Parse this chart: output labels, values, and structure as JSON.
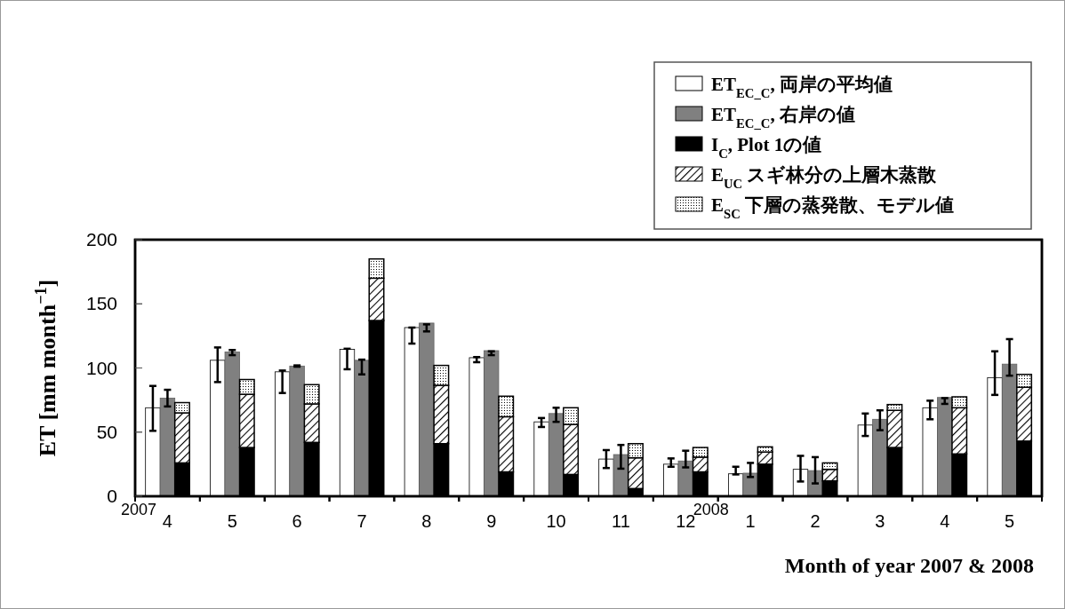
{
  "chart_data": [
    {
      "type": "bar",
      "xlabel": "Month of year 2007 & 2008",
      "ylabel": "ET [mm month$^{−1}$]",
      "categories": [
        "4",
        "5",
        "6",
        "7",
        "8",
        "9",
        "10",
        "11",
        "12",
        "1",
        "2",
        "3",
        "4",
        "5"
      ],
      "ylim": [
        0,
        200
      ],
      "yticks": [
        0,
        50,
        100,
        150,
        200
      ],
      "legend": "top right",
      "annotations": [
        "2007",
        "2008"
      ],
      "series": [
        {
          "name": "ET$_{EC_C}$, 両岸の平均値",
          "color": "#ffffff",
          "values": [
            69,
            106,
            97,
            114.5,
            131.5,
            108,
            58,
            29,
            25,
            17.5,
            21,
            55.5,
            69,
            92.5
          ],
          "errors": [
            [
              51,
              86
            ],
            [
              89,
              116
            ],
            [
              80.5,
              98
            ],
            [
              99,
              115
            ],
            [
              119,
              131.5
            ],
            [
              104.5,
              108.5
            ],
            [
              54,
              61
            ],
            [
              22,
              36
            ],
            [
              23,
              29.5
            ],
            [
              17,
              23
            ],
            [
              11.5,
              31.5
            ],
            [
              47,
              64.5
            ],
            [
              60,
              74.5
            ],
            [
              79,
              113
            ]
          ]
        },
        {
          "name": "ET$_{EC_C}$, 右岸の値",
          "color": "#808080",
          "values": [
            76.5,
            112.5,
            101.5,
            106,
            135,
            113.5,
            64.5,
            32.5,
            27.5,
            18,
            20,
            60,
            77,
            103
          ],
          "errors": [
            [
              70,
              83
            ],
            [
              110,
              114
            ],
            [
              101,
              102
            ],
            [
              95,
              106.5
            ],
            [
              128.5,
              134
            ],
            [
              110,
              113
            ],
            [
              58,
              69
            ],
            [
              21.5,
              40
            ],
            [
              22.5,
              35.5
            ],
            [
              15,
              26
            ],
            [
              10,
              30.5
            ],
            [
              51.5,
              67
            ],
            [
              72,
              76.5
            ],
            [
              94,
              122.5
            ]
          ]
        }
      ]
    },
    {
      "type": "bar",
      "categories": [
        null,
        null,
        null,
        null,
        null,
        null,
        null,
        null,
        null,
        null,
        null,
        null,
        null,
        null
      ],
      "ylim": [
        0,
        200
      ],
      "yticks": [
        0,
        50,
        100,
        150,
        200
      ],
      "tick_labels": false,
      "legend": "top right",
      "stacked": true,
      "series": [
        {
          "name": "I$_{C}$, Plot 1の値",
          "color": "#000000",
          "values": [
            26,
            38,
            42,
            137,
            41,
            19,
            17,
            6,
            19,
            25,
            12,
            38,
            33,
            43
          ]
        },
        {
          "name": "E$_{UC}$ スギ林分の上層木蒸散",
          "color": "#000000",
          "values": [
            39,
            41.5,
            30,
            33,
            45.5,
            43,
            39,
            24,
            11.5,
            9.5,
            9,
            29,
            36,
            42
          ]
        },
        {
          "name": "E$_{SC}$ 下層の蒸発散、モデル値",
          "color": "#000000",
          "values": [
            8,
            11.5,
            15,
            15,
            15.5,
            16,
            13,
            11,
            7.5,
            4,
            5,
            4.5,
            8.5,
            10
          ]
        }
      ]
    }
  ]
}
